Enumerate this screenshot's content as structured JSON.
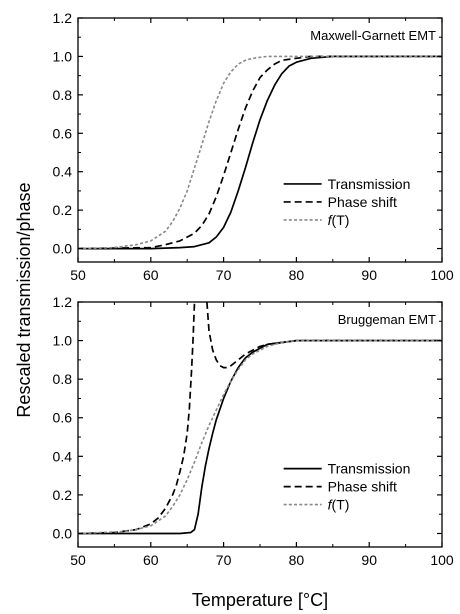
{
  "figure": {
    "shared_ylabel": "Rescaled transmission/phase",
    "shared_xlabel": "Temperature [°C]"
  },
  "chart_data": [
    {
      "type": "line",
      "title": "Maxwell-Garnett EMT",
      "xlabel": "Temperature [°C]",
      "ylabel": "Rescaled transmission/phase",
      "xlim": [
        50,
        100
      ],
      "ylim": [
        -0.07,
        1.2
      ],
      "x_ticks": [
        50,
        60,
        70,
        80,
        90,
        100
      ],
      "y_ticks": [
        0.0,
        0.2,
        0.4,
        0.6,
        0.8,
        1.0,
        1.2
      ],
      "x_tick_labels": [
        "50",
        "60",
        "70",
        "80",
        "90",
        "100"
      ],
      "y_tick_labels": [
        "0.0",
        "0.2",
        "0.4",
        "0.6",
        "0.8",
        "1.0",
        "1.2"
      ],
      "legend": {
        "position": "right-center",
        "entries": [
          "Transmission",
          "Phase shift",
          "(T)"
        ],
        "italic_prefix": "f"
      },
      "series": [
        {
          "name": "Transmission",
          "style": "solid",
          "color": "#000000",
          "x": [
            50,
            60,
            64,
            66,
            68,
            69,
            70,
            71,
            72,
            73,
            74,
            75,
            76,
            77,
            78,
            79,
            80,
            82,
            85,
            90,
            100
          ],
          "y": [
            0,
            0,
            0.005,
            0.01,
            0.03,
            0.06,
            0.11,
            0.19,
            0.3,
            0.42,
            0.55,
            0.67,
            0.77,
            0.85,
            0.91,
            0.95,
            0.97,
            0.99,
            1.0,
            1.0,
            1.0
          ]
        },
        {
          "name": "Phase shift",
          "style": "dashed",
          "color": "#000000",
          "x": [
            50,
            60,
            62,
            64,
            66,
            67,
            68,
            69,
            70,
            71,
            72,
            73,
            74,
            75,
            76,
            77,
            78,
            80,
            82,
            85,
            100
          ],
          "y": [
            0,
            0.005,
            0.02,
            0.04,
            0.08,
            0.12,
            0.18,
            0.27,
            0.38,
            0.5,
            0.62,
            0.73,
            0.82,
            0.89,
            0.93,
            0.96,
            0.98,
            0.99,
            1.0,
            1.0,
            1.0
          ]
        },
        {
          "name": "f(T)",
          "style": "dotted",
          "color": "#888888",
          "x": [
            50,
            55,
            58,
            60,
            62,
            63,
            64,
            65,
            66,
            67,
            68,
            69,
            70,
            71,
            72,
            73,
            74,
            76,
            78,
            80,
            100
          ],
          "y": [
            0,
            0.005,
            0.02,
            0.04,
            0.09,
            0.14,
            0.21,
            0.3,
            0.42,
            0.54,
            0.66,
            0.77,
            0.86,
            0.92,
            0.96,
            0.98,
            0.99,
            1.0,
            1.0,
            1.0,
            1.0
          ]
        }
      ]
    },
    {
      "type": "line",
      "title": "Bruggeman EMT",
      "xlabel": "Temperature [°C]",
      "ylabel": "Rescaled transmission/phase",
      "xlim": [
        50,
        100
      ],
      "ylim": [
        -0.07,
        1.2
      ],
      "x_ticks": [
        50,
        60,
        70,
        80,
        90,
        100
      ],
      "y_ticks": [
        0.0,
        0.2,
        0.4,
        0.6,
        0.8,
        1.0,
        1.2
      ],
      "x_tick_labels": [
        "50",
        "60",
        "70",
        "80",
        "90",
        "100"
      ],
      "y_tick_labels": [
        "0.0",
        "0.2",
        "0.4",
        "0.6",
        "0.8",
        "1.0",
        "1.2"
      ],
      "legend": {
        "position": "right-center",
        "entries": [
          "Transmission",
          "Phase shift",
          "(T)"
        ],
        "italic_prefix": "f"
      },
      "series": [
        {
          "name": "Transmission",
          "style": "solid",
          "color": "#000000",
          "x": [
            50,
            64,
            65.5,
            66,
            66.5,
            67,
            67.5,
            68,
            68.5,
            69,
            70,
            71,
            72,
            73,
            74,
            75,
            76,
            78,
            80,
            85,
            100
          ],
          "y": [
            0,
            0,
            0.005,
            0.02,
            0.1,
            0.24,
            0.35,
            0.44,
            0.52,
            0.59,
            0.7,
            0.79,
            0.86,
            0.91,
            0.94,
            0.96,
            0.98,
            0.99,
            1.0,
            1.0,
            1.0
          ]
        },
        {
          "name": "Phase shift",
          "style": "dashed",
          "color": "#000000",
          "segments": [
            {
              "x": [
                50,
                55,
                58,
                60,
                61,
                62,
                63,
                63.5,
                64,
                64.5,
                65,
                65.3,
                65.6,
                65.8,
                66
              ],
              "y": [
                0,
                0.005,
                0.02,
                0.05,
                0.08,
                0.13,
                0.2,
                0.25,
                0.32,
                0.4,
                0.52,
                0.65,
                0.85,
                1.0,
                1.2
              ]
            },
            {
              "x": [
                67.7,
                68,
                68.5,
                69,
                69.5,
                70,
                70.5,
                71,
                72,
                73,
                74,
                75,
                76,
                78,
                80,
                85,
                100
              ],
              "y": [
                1.2,
                1.05,
                0.95,
                0.9,
                0.87,
                0.86,
                0.86,
                0.87,
                0.9,
                0.93,
                0.95,
                0.97,
                0.98,
                0.99,
                1.0,
                1.0,
                1.0
              ]
            }
          ]
        },
        {
          "name": "f(T)",
          "style": "dotted",
          "color": "#888888",
          "x": [
            50,
            56,
            58,
            60,
            62,
            63,
            64,
            65,
            66,
            67,
            68,
            69,
            70,
            71,
            72,
            73,
            74,
            76,
            78,
            80,
            100
          ],
          "y": [
            0,
            0.01,
            0.02,
            0.04,
            0.09,
            0.14,
            0.2,
            0.28,
            0.37,
            0.47,
            0.56,
            0.64,
            0.72,
            0.79,
            0.85,
            0.9,
            0.93,
            0.97,
            0.99,
            1.0,
            1.0
          ]
        }
      ]
    }
  ]
}
